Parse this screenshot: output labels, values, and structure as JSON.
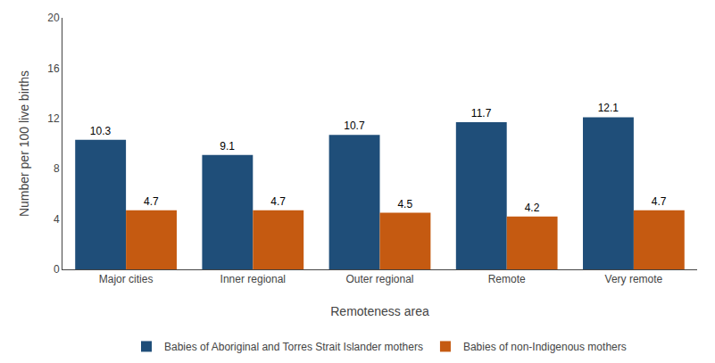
{
  "chart_data": {
    "type": "bar",
    "categories": [
      "Major cities",
      "Inner regional",
      "Outer regional",
      "Remote",
      "Very remote"
    ],
    "series": [
      {
        "name": "Babies of Aboriginal and Torres Strait Islander mothers",
        "color": "#1F4E79",
        "values": [
          10.3,
          9.1,
          10.7,
          11.7,
          12.1
        ]
      },
      {
        "name": "Babies of non-Indigenous mothers",
        "color": "#C55A11",
        "values": [
          4.7,
          4.7,
          4.5,
          4.2,
          4.7
        ]
      }
    ],
    "xlabel": "Remoteness area",
    "ylabel": "Number per 100 live births",
    "ylim": [
      0,
      20
    ],
    "yticks": [
      0,
      4,
      8,
      12,
      16,
      20
    ],
    "data_labels": true,
    "grid": false,
    "legend": "bottom"
  }
}
